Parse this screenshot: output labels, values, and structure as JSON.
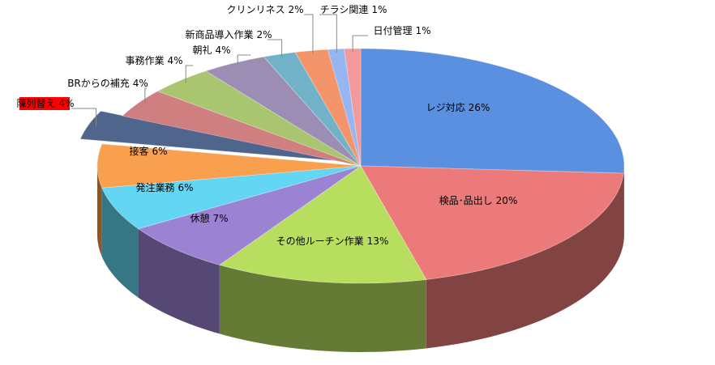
{
  "chart_data": {
    "type": "pie3d",
    "categories": [
      "レジ対応",
      "検品･品出し",
      "その他ルーチン作業",
      "休憩",
      "発注業務",
      "接客",
      "陳列替え",
      "BRからの補充",
      "事務作業",
      "朝礼",
      "新商品導入作業",
      "クリンリネス",
      "チラシ関連",
      "日付管理"
    ],
    "values": [
      26,
      20,
      13,
      7,
      6,
      6,
      4,
      4,
      4,
      4,
      2,
      2,
      1,
      1
    ],
    "value_labels": [
      "26%",
      "20%",
      "13%",
      "7%",
      "6%",
      "6%",
      "4%",
      "4%",
      "4%",
      "4%",
      "2%",
      "2%",
      "1%",
      "1%"
    ],
    "colors": [
      "#5b8fe0",
      "#ec7a7a",
      "#b8de60",
      "#9b82d2",
      "#62d6f2",
      "#f8a04e",
      "#4f658c",
      "#cf7f7f",
      "#a9c56f",
      "#9b8db4",
      "#72b2c9",
      "#f3946a",
      "#96b6f2",
      "#f29a9a"
    ],
    "exploded": 6
  }
}
